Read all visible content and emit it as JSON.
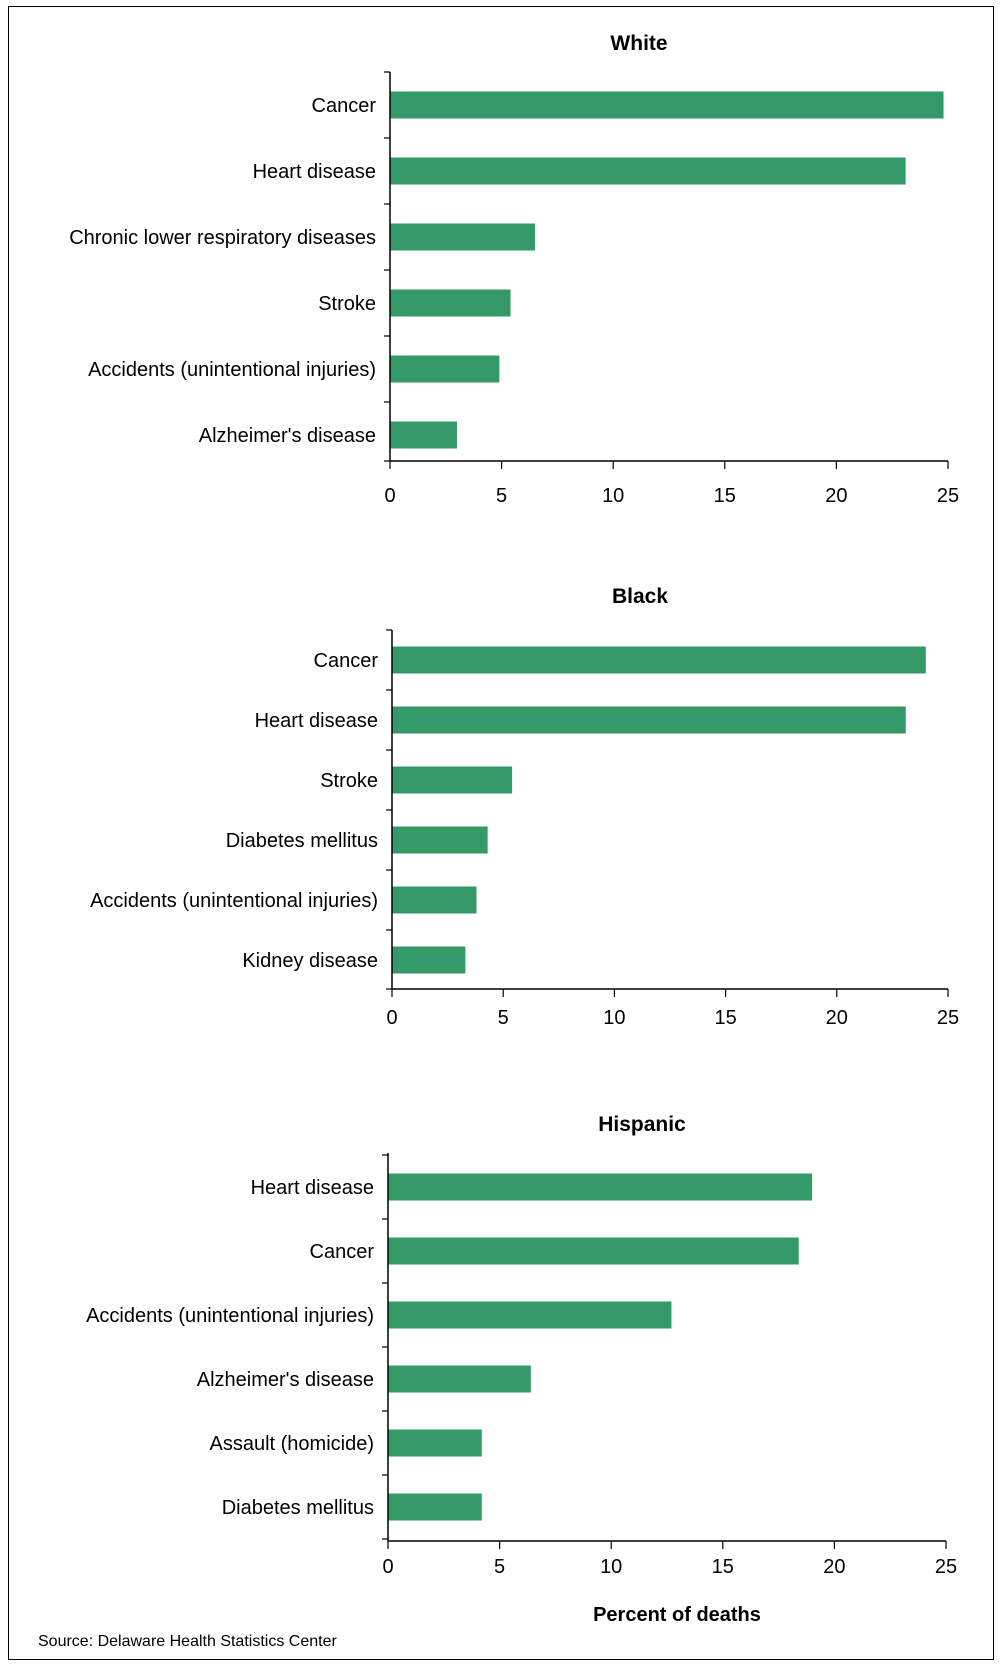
{
  "source_note": "Source:  Delaware Health Statistics Center",
  "xlabel": "Percent of deaths",
  "bar_color": "#339966",
  "chart_data": [
    {
      "type": "bar",
      "orientation": "horizontal",
      "title": "White",
      "categories": [
        "Cancer",
        "Heart disease",
        "Chronic lower respiratory diseases",
        "Stroke",
        "Accidents (unintentional injuries)",
        "Alzheimer's disease"
      ],
      "values": [
        24.8,
        23.1,
        6.5,
        5.4,
        4.9,
        3.0
      ],
      "xlim": [
        0,
        25
      ],
      "xticks": [
        0,
        5,
        10,
        15,
        20,
        25
      ],
      "xlabel": "",
      "grid": false
    },
    {
      "type": "bar",
      "orientation": "horizontal",
      "title": "Black",
      "categories": [
        "Cancer",
        "Heart disease",
        "Stroke",
        "Diabetes mellitus",
        "Accidents (unintentional injuries)",
        "Kidney disease"
      ],
      "values": [
        24.0,
        23.1,
        5.4,
        4.3,
        3.8,
        3.3
      ],
      "xlim": [
        0,
        25
      ],
      "xticks": [
        0,
        5,
        10,
        15,
        20,
        25
      ],
      "xlabel": "",
      "grid": false
    },
    {
      "type": "bar",
      "orientation": "horizontal",
      "title": "Hispanic",
      "categories": [
        "Heart disease",
        "Cancer",
        "Accidents (unintentional injuries)",
        "Alzheimer's disease",
        "Assault (homicide)",
        "Diabetes mellitus"
      ],
      "values": [
        19.0,
        18.4,
        12.7,
        6.4,
        4.2,
        4.2
      ],
      "xlim": [
        0,
        25
      ],
      "xticks": [
        0,
        5,
        10,
        15,
        20,
        25
      ],
      "xlabel": "Percent of deaths",
      "grid": false
    }
  ]
}
